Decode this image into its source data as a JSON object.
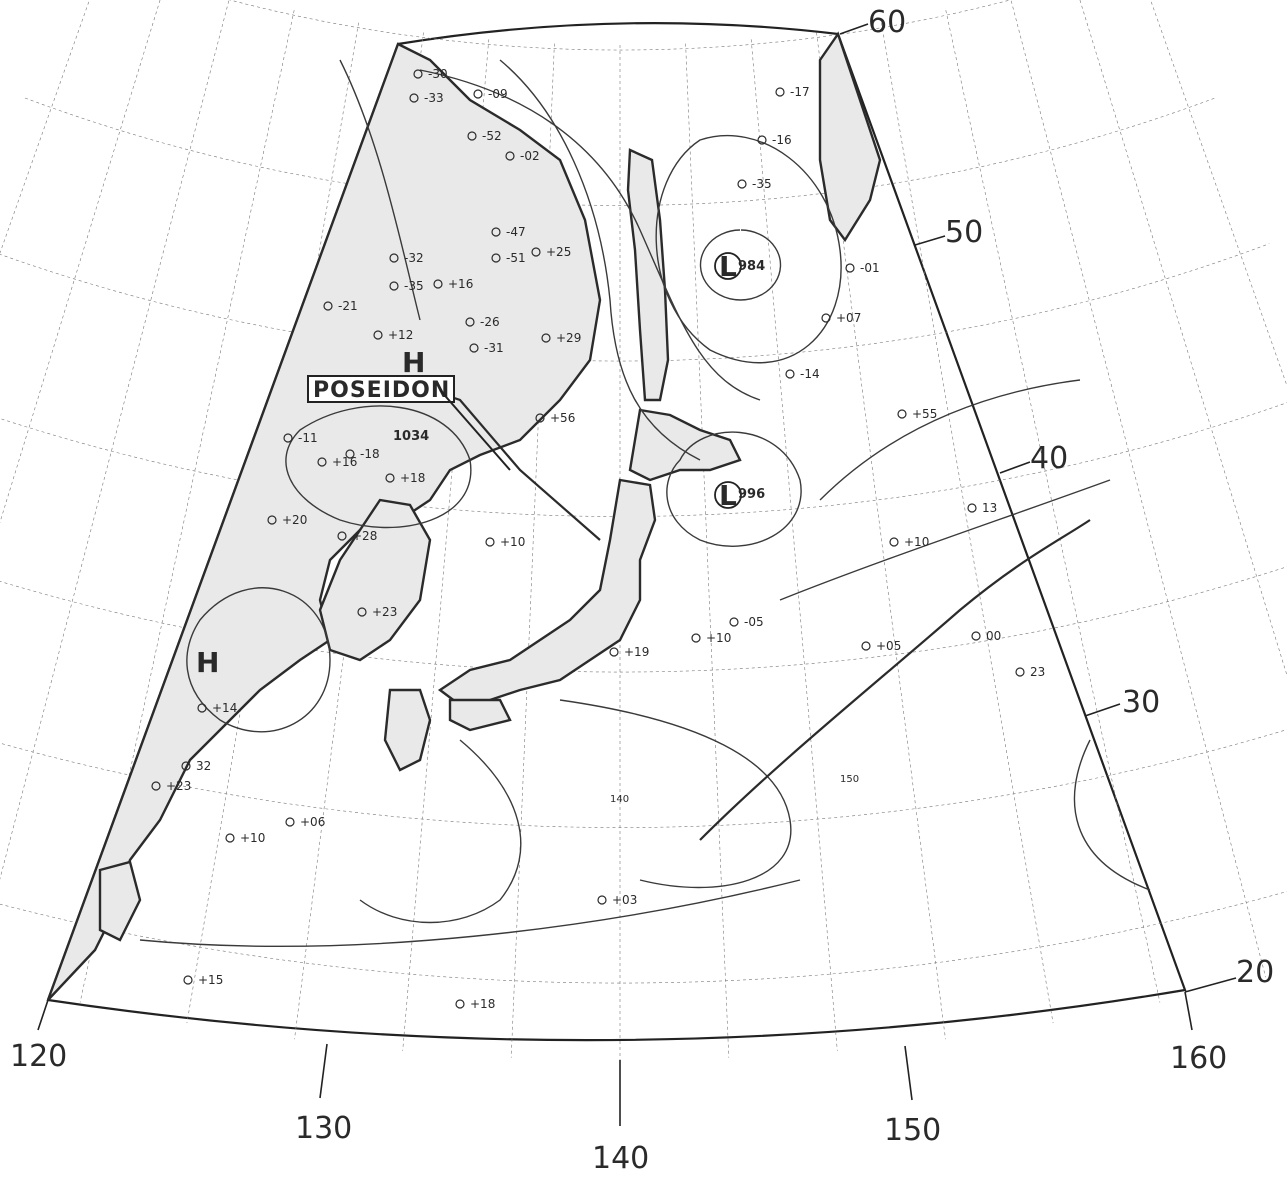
{
  "map": {
    "latitudes": [
      "60",
      "50",
      "40",
      "30",
      "20"
    ],
    "longitudes_bottom": [
      "120",
      "130",
      "140",
      "150",
      "160"
    ],
    "inner_longitudes": [
      "140",
      "150"
    ],
    "ship_label": "POSEIDON",
    "pressure_systems": [
      {
        "kind": "H",
        "value": "1034"
      },
      {
        "kind": "L",
        "value": "984"
      },
      {
        "kind": "L",
        "value": "996"
      },
      {
        "kind": "H",
        "value": ""
      }
    ],
    "station_values": [
      "-30",
      "-33",
      "-09",
      "-52",
      "-02",
      "-47",
      "-51",
      "+25",
      "-32",
      "-35",
      "+16",
      "-21",
      "+12",
      "-26",
      "+29",
      "-31",
      "+56",
      "-18",
      "+18",
      "-11",
      "+16",
      "+20",
      "+28",
      "+10",
      "+23",
      "-05",
      "+05",
      "00",
      "+14",
      "32",
      "+23",
      "+06",
      "+10",
      "+15",
      "+18",
      "+03",
      "+19",
      "+10",
      "-17",
      "-16",
      "-35",
      "-01",
      "+07",
      "-14",
      "+55",
      "+10",
      "13",
      "23"
    ],
    "colors": {
      "ink": "#2b2b2b",
      "land": "#e9e9e9",
      "paper": "#ffffff"
    }
  }
}
